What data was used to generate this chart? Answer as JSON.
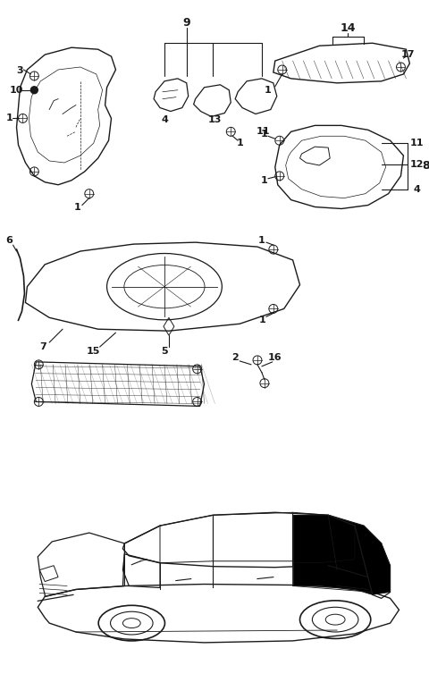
{
  "bg_color": "#ffffff",
  "line_color": "#1a1a1a",
  "fig_width": 4.8,
  "fig_height": 7.82,
  "dpi": 100
}
